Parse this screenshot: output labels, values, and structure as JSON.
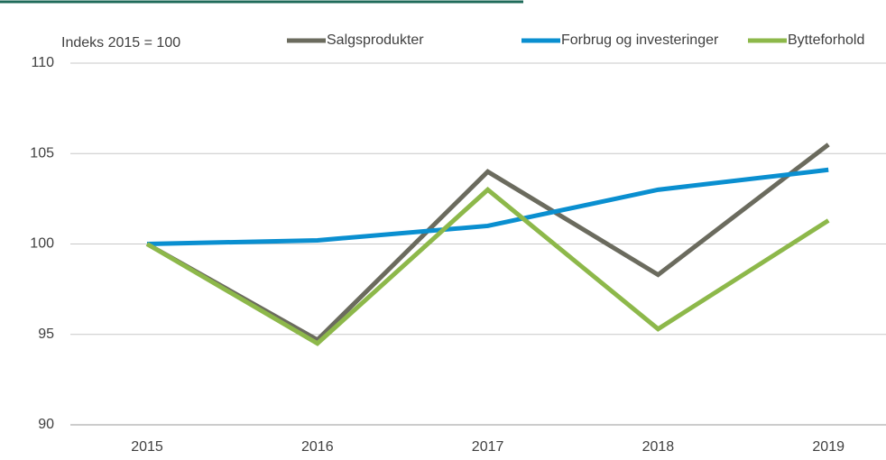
{
  "chart_data": {
    "type": "line",
    "annotation": "Indeks 2015 = 100",
    "categories": [
      "2015",
      "2016",
      "2017",
      "2018",
      "2019"
    ],
    "series": [
      {
        "name": "Salgsprodukter",
        "color": "#6b6b5e",
        "values": [
          100,
          94.7,
          104.0,
          98.3,
          105.5
        ]
      },
      {
        "name": "Forbrug og investeringer",
        "color": "#0a8fd0",
        "values": [
          100,
          100.2,
          101.0,
          103.0,
          104.1
        ]
      },
      {
        "name": "Bytteforhold",
        "color": "#8db84a",
        "values": [
          100,
          94.5,
          103.0,
          95.3,
          101.3
        ]
      }
    ],
    "ylim": [
      90,
      110
    ],
    "yticks": [
      90,
      95,
      100,
      105,
      110
    ],
    "grid": true,
    "legend": "top"
  }
}
